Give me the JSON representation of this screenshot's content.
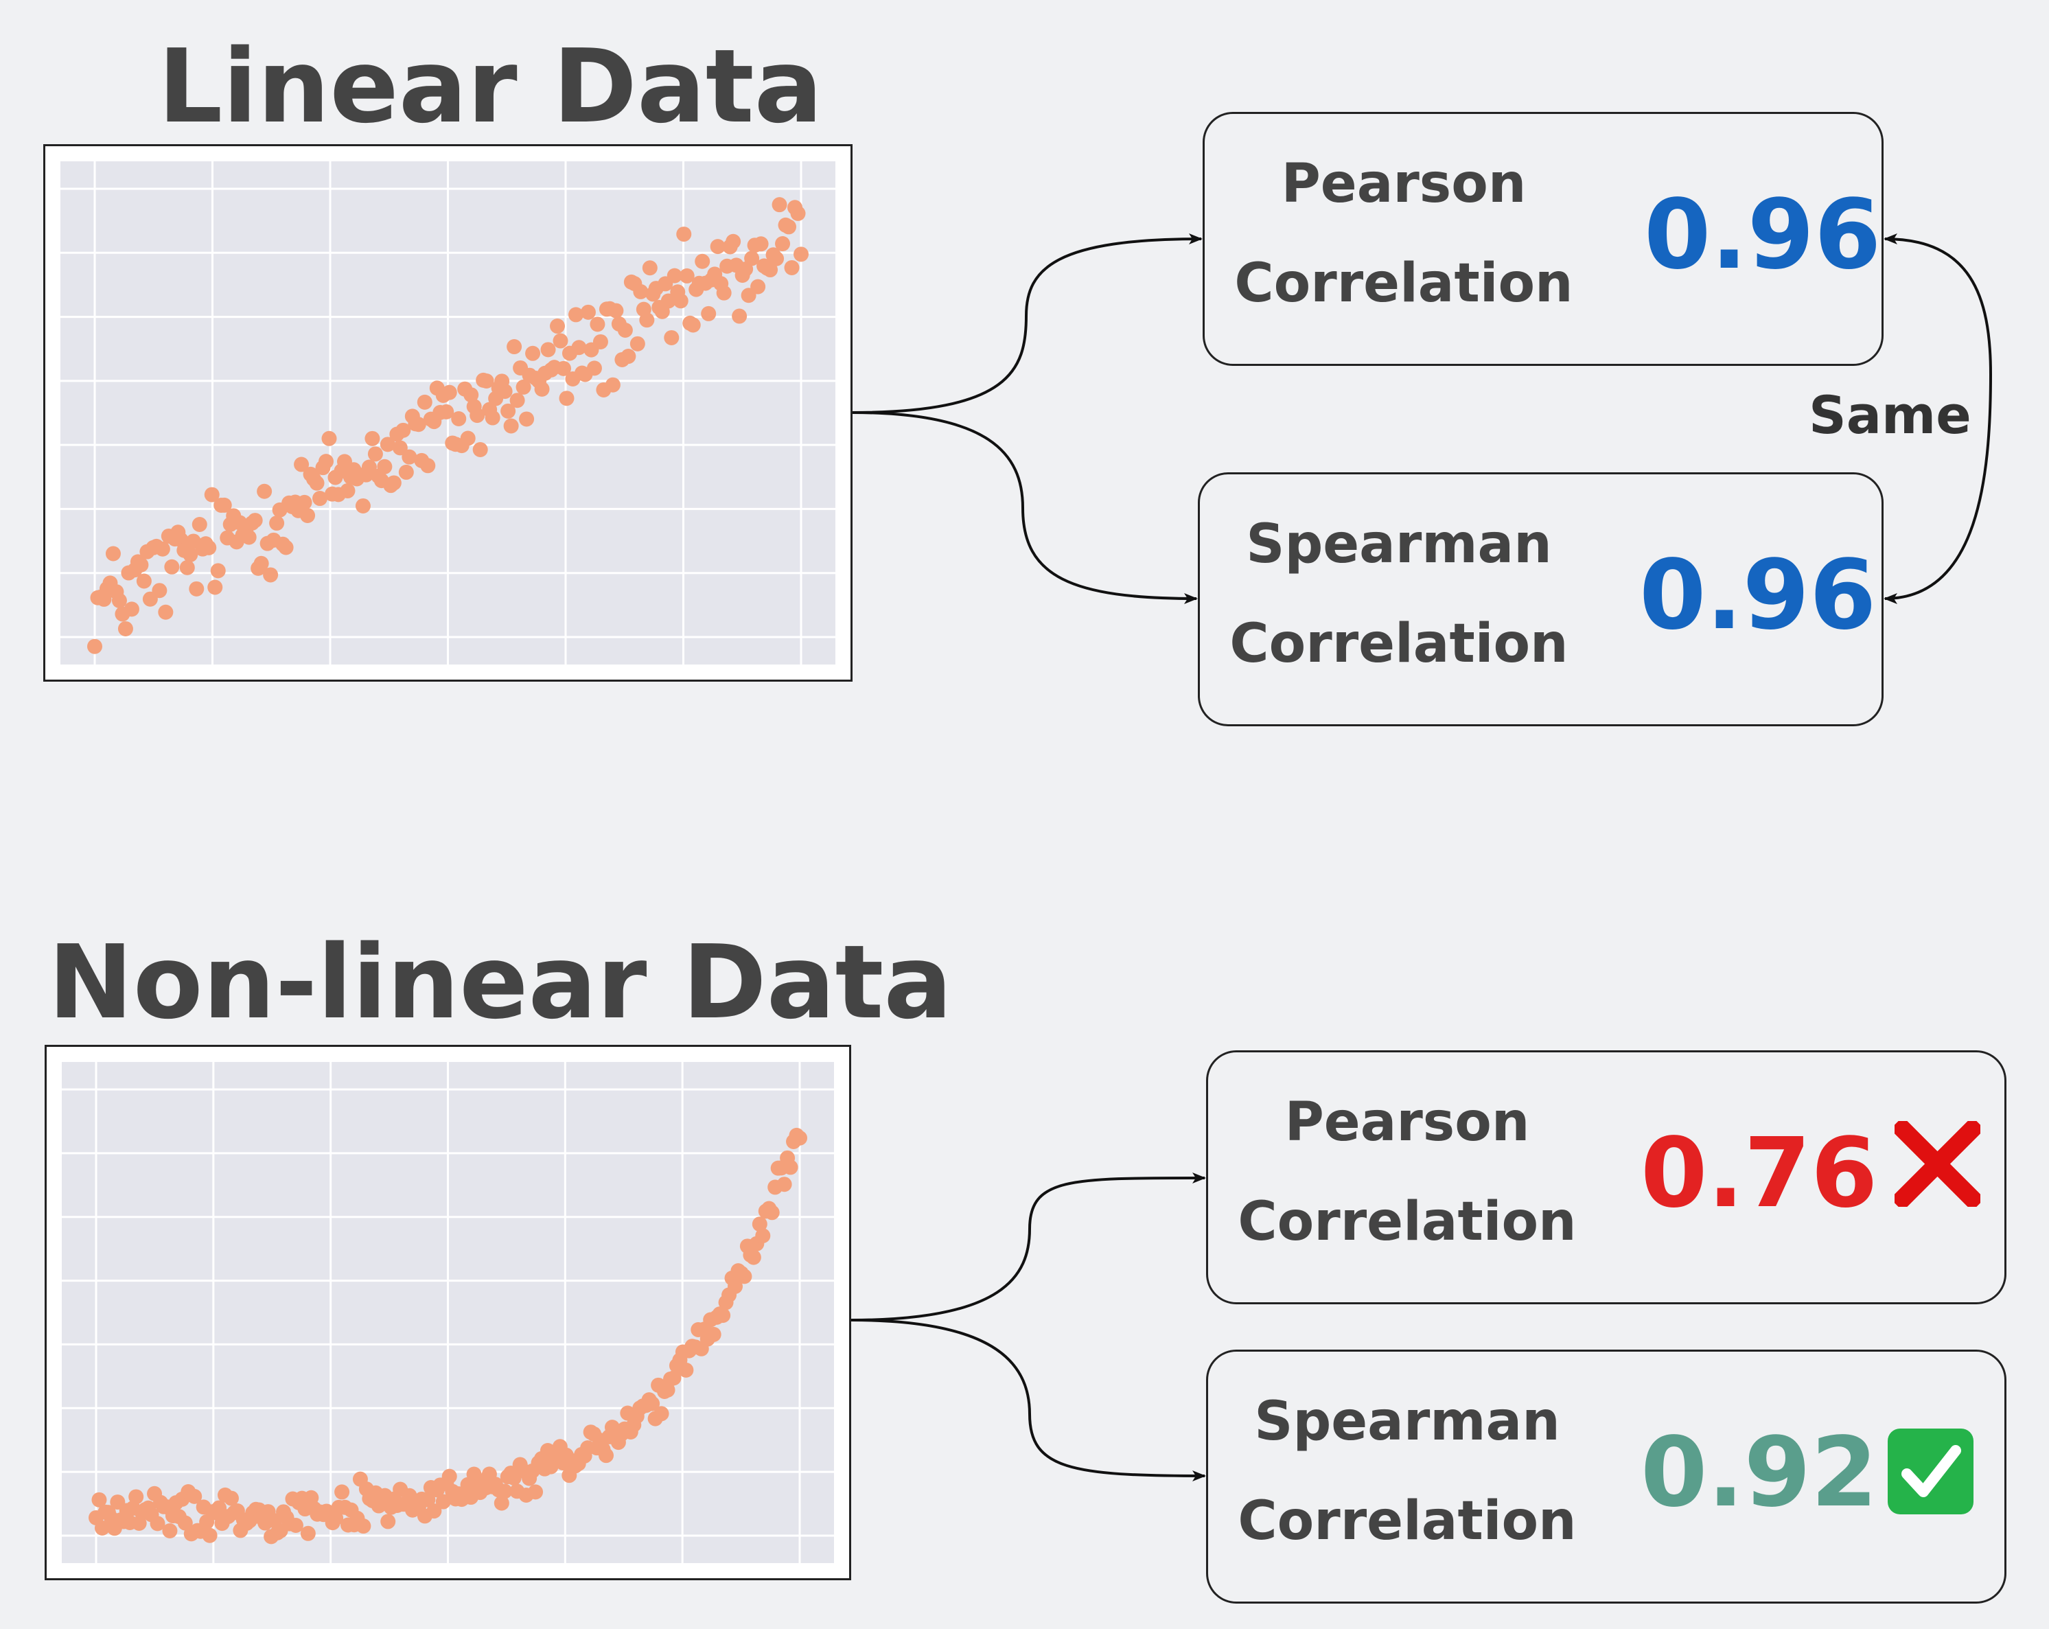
{
  "linear_section": {
    "title": "Linear Data",
    "pearson": {
      "label_line1": "Pearson",
      "label_line2": "Correlation",
      "value": "0.96",
      "color": "#1565c0"
    },
    "spearman": {
      "label_line1": "Spearman",
      "label_line2": "Correlation",
      "value": "0.96",
      "color": "#1565c0"
    },
    "comparison_label": "Same"
  },
  "nonlinear_section": {
    "title": "Non-linear Data",
    "pearson": {
      "label_line1": "Pearson",
      "label_line2": "Correlation",
      "value": "0.76",
      "color": "#e32222",
      "mark": "cross-icon"
    },
    "spearman": {
      "label_line1": "Spearman",
      "label_line2": "Correlation",
      "value": "0.92",
      "color": "#5a9e8c",
      "mark": "check-icon"
    }
  },
  "colors": {
    "point": "#f4a07a",
    "plot_background": "#e4e5ec",
    "grid": "#ffffff",
    "text": "#444444"
  },
  "chart_data": [
    {
      "type": "scatter",
      "title": "Linear Data",
      "xlabel": "",
      "ylabel": "",
      "xlim": [
        0,
        1
      ],
      "ylim": [
        0,
        1.1
      ],
      "grid": true,
      "trend": "linear",
      "n_points": 230,
      "fit": {
        "y_at_x0": 0.1,
        "y_at_x1": 0.95,
        "spread": 0.06
      }
    },
    {
      "type": "scatter",
      "title": "Non-linear Data",
      "xlabel": "",
      "ylabel": "",
      "xlim": [
        0,
        1
      ],
      "ylim": [
        0,
        1.1
      ],
      "grid": true,
      "trend": "exponential",
      "n_points": 230,
      "fit": {
        "y_at_x0": 0.08,
        "y_at_x1": 1.0,
        "spread": 0.025
      }
    }
  ]
}
